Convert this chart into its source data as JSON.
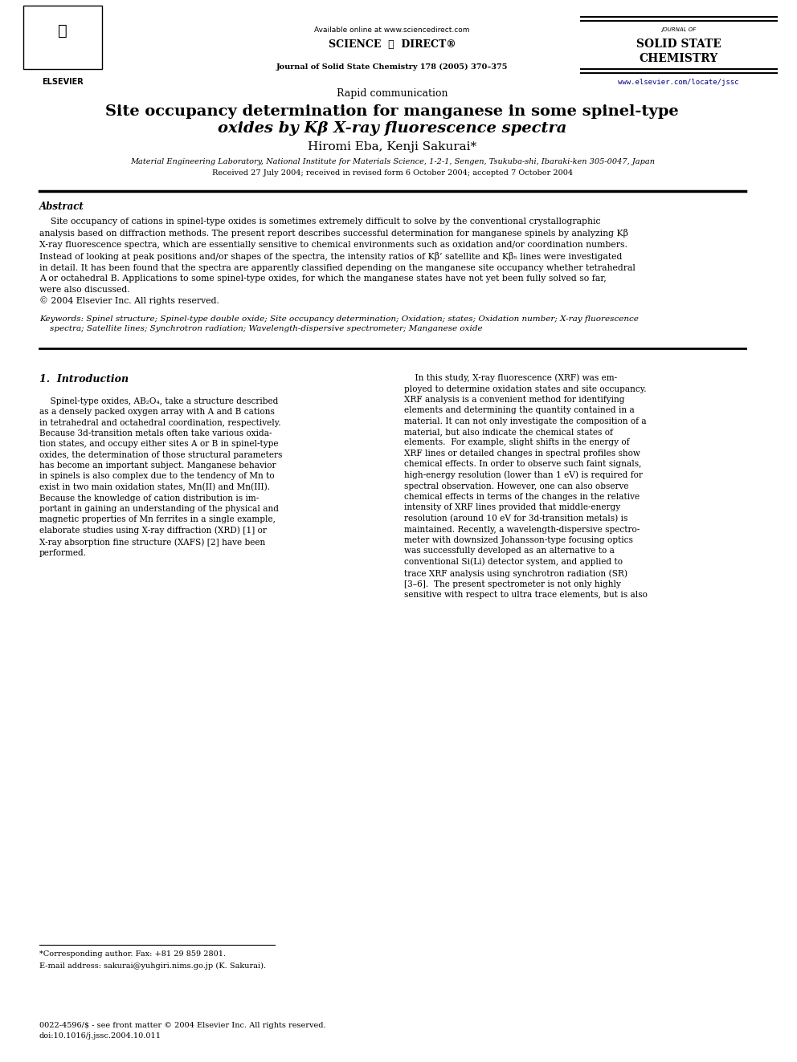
{
  "bg_color": "#ffffff",
  "page_width": 9.92,
  "page_height": 13.23,
  "header": {
    "available_online": "Available online at www.sciencedirect.com",
    "journal_name_top": "JOURNAL OF",
    "journal_name_line1": "SOLID STATE",
    "journal_name_line2": "CHEMISTRY",
    "journal_ref": "Journal of Solid State Chemistry 178 (2005) 370–375",
    "website": "www.elsevier.com/locate/jssc"
  },
  "section_label": "Rapid communication",
  "title_line1": "Site occupancy determination for manganese in some spinel-type",
  "title_line2": "oxides by Κβ X-ray fluorescence spectra",
  "authors": "Hiromi Eba, Kenji Sakurai*",
  "affiliation": "Material Engineering Laboratory, National Institute for Materials Science, 1-2-1, Sengen, Tsukuba-shi, Ibaraki-ken 305-0047, Japan",
  "received": "Received 27 July 2004; received in revised form 6 October 2004; accepted 7 October 2004",
  "abstract_heading": "Abstract",
  "abstract_text": "    Site occupancy of cations in spinel-type oxides is sometimes extremely difficult to solve by the conventional crystallographic\nanalysis based on diffraction methods. The present report describes successful determination for manganese spinels by analyzing Kβ\nX-ray fluorescence spectra, which are essentially sensitive to chemical environments such as oxidation and/or coordination numbers.\nInstead of looking at peak positions and/or shapes of the spectra, the intensity ratios of Kβ’ satellite and Kβ₅ lines were investigated\nin detail. It has been found that the spectra are apparently classified depending on the manganese site occupancy whether tetrahedral\nA or octahedral B. Applications to some spinel-type oxides, for which the manganese states have not yet been fully solved so far,\nwere also discussed.\n© 2004 Elsevier Inc. All rights reserved.",
  "keywords_label": "Keywords:",
  "keywords_text": "Spinel structure; Spinel-type double oxide; Site occupancy determination; Oxidation; states; Oxidation number; X-ray fluorescence\n    spectra; Satellite lines; Synchrotron radiation; Wavelength-dispersive spectrometer; Manganese oxide",
  "intro_heading": "1.  Introduction",
  "intro_col1": "    Spinel-type oxides, AB₂O₄, take a structure described\nas a densely packed oxygen array with A and B cations\nin tetrahedral and octahedral coordination, respectively.\nBecause 3d-transition metals often take various oxida-\ntion states, and occupy either sites A or B in spinel-type\noxides, the determination of those structural parameters\nhas become an important subject. Manganese behavior\nin spinels is also complex due to the tendency of Mn to\nexist in two main oxidation states, Mn(II) and Mn(III).\nBecause the knowledge of cation distribution is im-\nportant in gaining an understanding of the physical and\nmagnetic properties of Mn ferrites in a single example,\nelaborate studies using X-ray diffraction (XRD) [1] or\nX-ray absorption fine structure (XAFS) [2] have been\nperformed.",
  "intro_col2": "    In this study, X-ray fluorescence (XRF) was em-\nployed to determine oxidation states and site occupancy.\nXRF analysis is a convenient method for identifying\nelements and determining the quantity contained in a\nmaterial. It can not only investigate the composition of a\nmaterial, but also indicate the chemical states of\nelements.  For example, slight shifts in the energy of\nXRF lines or detailed changes in spectral profiles show\nchemical effects. In order to observe such faint signals,\nhigh-energy resolution (lower than 1 eV) is required for\nspectral observation. However, one can also observe\nchemical effects in terms of the changes in the relative\nintensity of XRF lines provided that middle-energy\nresolution (around 10 eV for 3d-transition metals) is\nmaintained. Recently, a wavelength-dispersive spectro-\nmeter with downsized Johansson-type focusing optics\nwas successfully developed as an alternative to a\nconventional Si(Li) detector system, and applied to\ntrace XRF analysis using synchrotron radiation (SR)\n[3–6].  The present spectrometer is not only highly\nsensitive with respect to ultra trace elements, but is also",
  "footnote_star": "*Corresponding author. Fax: +81 29 859 2801.",
  "footnote_email": "E-mail address: sakurai@yuhgiri.nims.go.jp (K. Sakurai).",
  "footer_issn": "0022-4596/$ - see front matter © 2004 Elsevier Inc. All rights reserved.",
  "footer_doi": "doi:10.1016/j.jssc.2004.10.011"
}
